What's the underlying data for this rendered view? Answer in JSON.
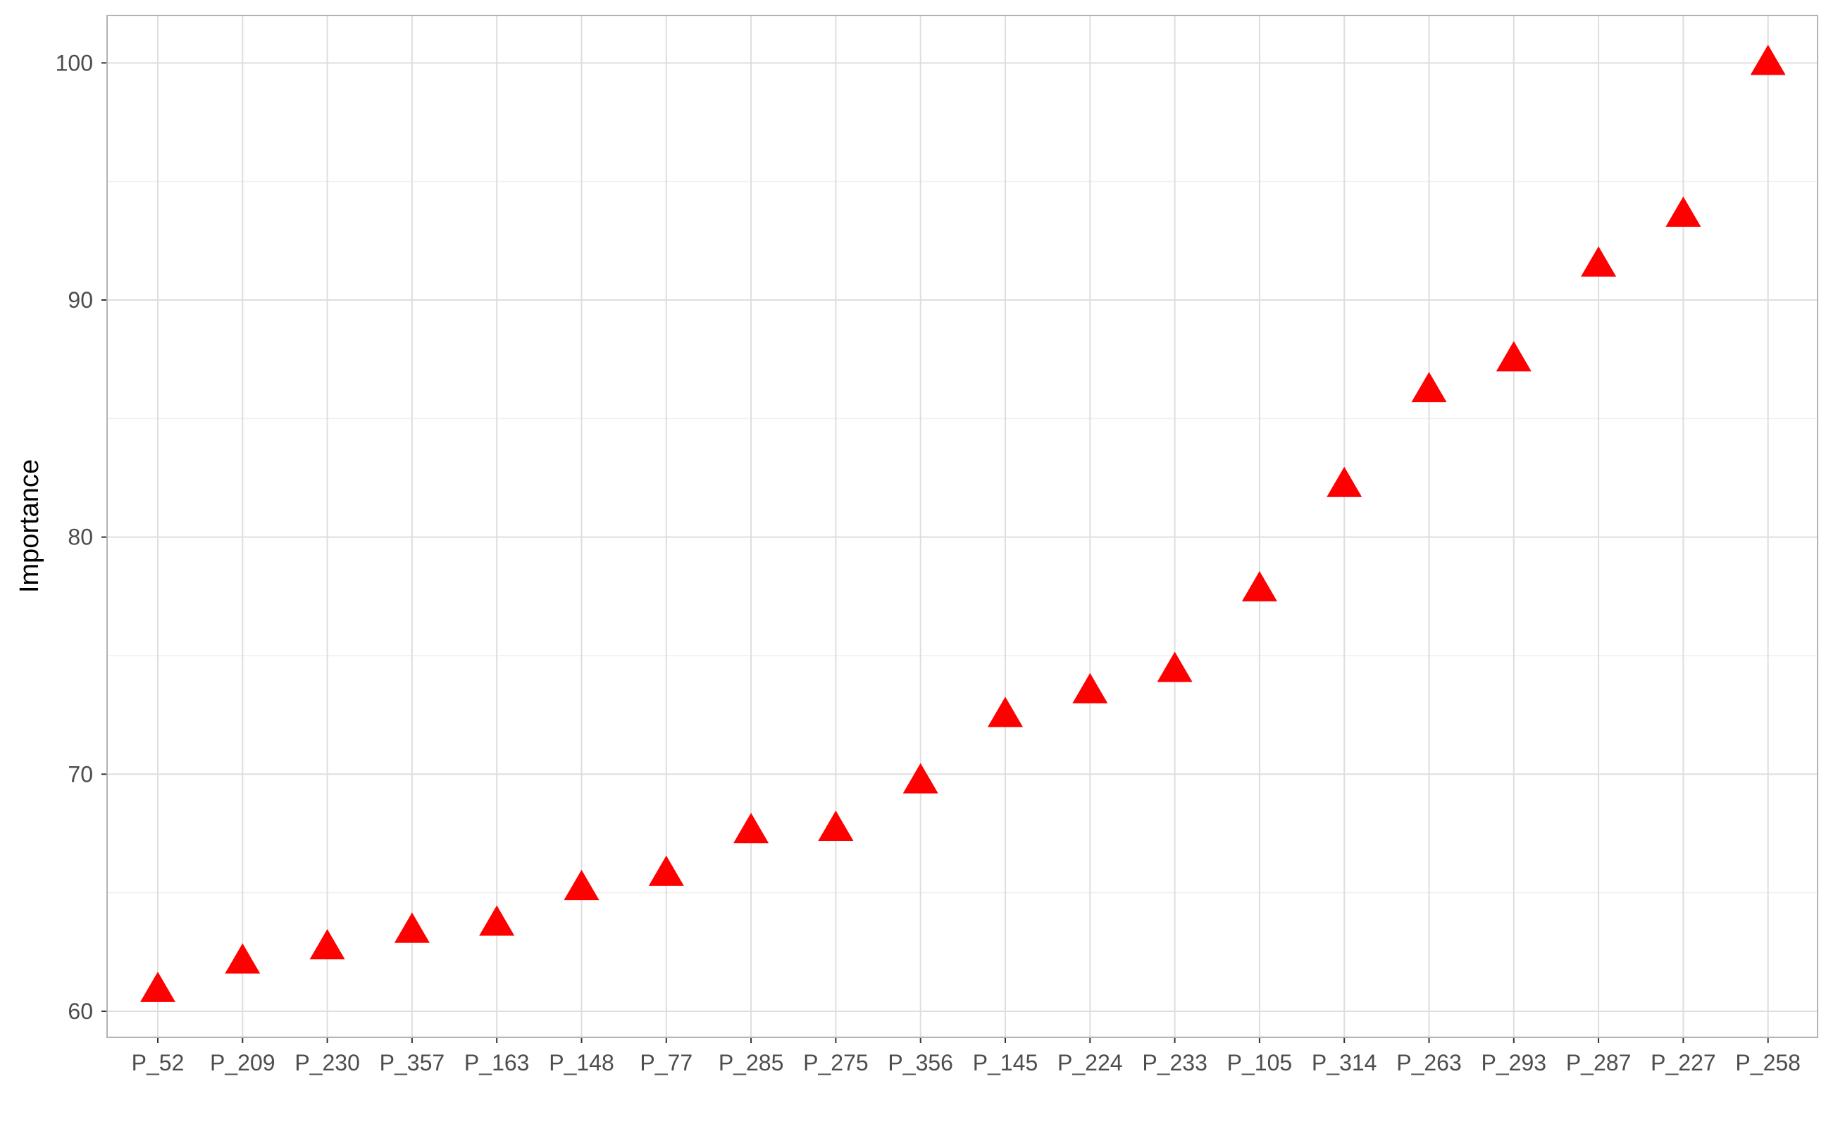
{
  "chart_data": {
    "type": "scatter",
    "marker": "triangle",
    "marker_color": "#ff0000",
    "grid": true,
    "title": "",
    "xlabel": "",
    "ylabel": "Importance",
    "ylim": [
      58.9,
      102
    ],
    "yticks": [
      60,
      70,
      80,
      90,
      100
    ],
    "categories": [
      "P_52",
      "P_209",
      "P_230",
      "P_357",
      "P_163",
      "P_148",
      "P_77",
      "P_285",
      "P_275",
      "P_356",
      "P_145",
      "P_224",
      "P_233",
      "P_105",
      "P_314",
      "P_263",
      "P_293",
      "P_287",
      "P_227",
      "P_258"
    ],
    "values": [
      60.9,
      62.1,
      62.7,
      63.4,
      63.7,
      65.2,
      65.8,
      67.6,
      67.7,
      69.7,
      72.5,
      73.5,
      74.4,
      77.8,
      82.2,
      86.2,
      87.5,
      91.5,
      93.6,
      100
    ]
  },
  "colors": {
    "panel_border": "#b3b3b3",
    "grid_major": "#dedede",
    "grid_minor": "#efefef",
    "tick_text": "#4d4d4d",
    "marker": "#ff0000"
  }
}
